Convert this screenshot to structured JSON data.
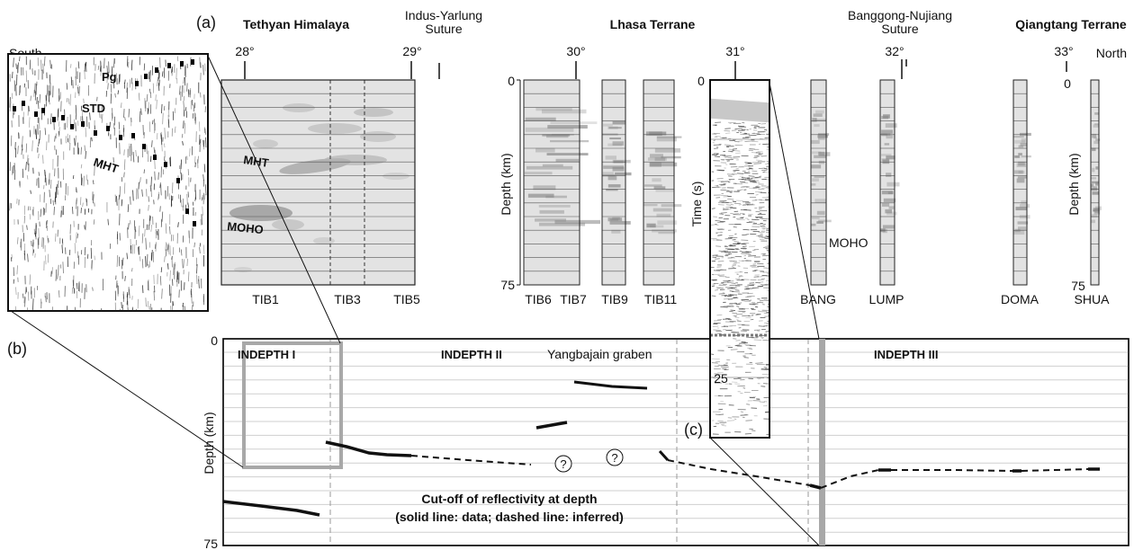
{
  "panel_labels": {
    "a": "(a)",
    "b": "(b)",
    "c": "(c)"
  },
  "top_labels": {
    "south": "South",
    "tethyan": "Tethyan Himalaya",
    "indus_line1": "Indus-Yarlung",
    "indus_line2": "Suture",
    "lhasa": "Lhasa Terrane",
    "bangong_line1": "Banggong-Nujiang",
    "bangong_line2": "Suture",
    "qiangtang": "Qiangtang Terrane",
    "north": "North"
  },
  "latitudes": [
    "28°",
    "29°",
    "30°",
    "31°",
    "32°",
    "33°"
  ],
  "inset_labels": {
    "pg": "Pg",
    "std": "STD",
    "mht": "MHT"
  },
  "tib_labels": {
    "mht": "MHT",
    "moho": "MOHO"
  },
  "axes": {
    "depth_km": "Depth (km)",
    "depth_km_right": "Depth (km)",
    "time_s": "Time (s)",
    "zero": "0",
    "seventyfive": "75",
    "twentyfive": "25",
    "moho": "MOHO"
  },
  "stations": {
    "tib1": "TIB1",
    "tib3": "TIB3",
    "tib5": "TIB5",
    "tib6": "TIB6",
    "tib7": "TIB7",
    "tib9": "TIB9",
    "tib11": "TIB11",
    "bang": "BANG",
    "lump": "LUMP",
    "doma": "DOMA",
    "shua": "SHUA"
  },
  "bottom_panel": {
    "indepth1": "INDEPTH I",
    "indepth2": "INDEPTH II",
    "indepth3": "INDEPTH III",
    "yangbajain": "Yangbajain graben",
    "q1": "?",
    "q2": "?",
    "caption_line1": "Cut-off of reflectivity at depth",
    "caption_line2": "(solid line: data; dashed line: inferred)",
    "y0": "0",
    "y75": "75"
  },
  "colors": {
    "grid": "#c8c8c8",
    "panel_fill": "#e6e6e6",
    "highlight": "#a8a8a8"
  }
}
